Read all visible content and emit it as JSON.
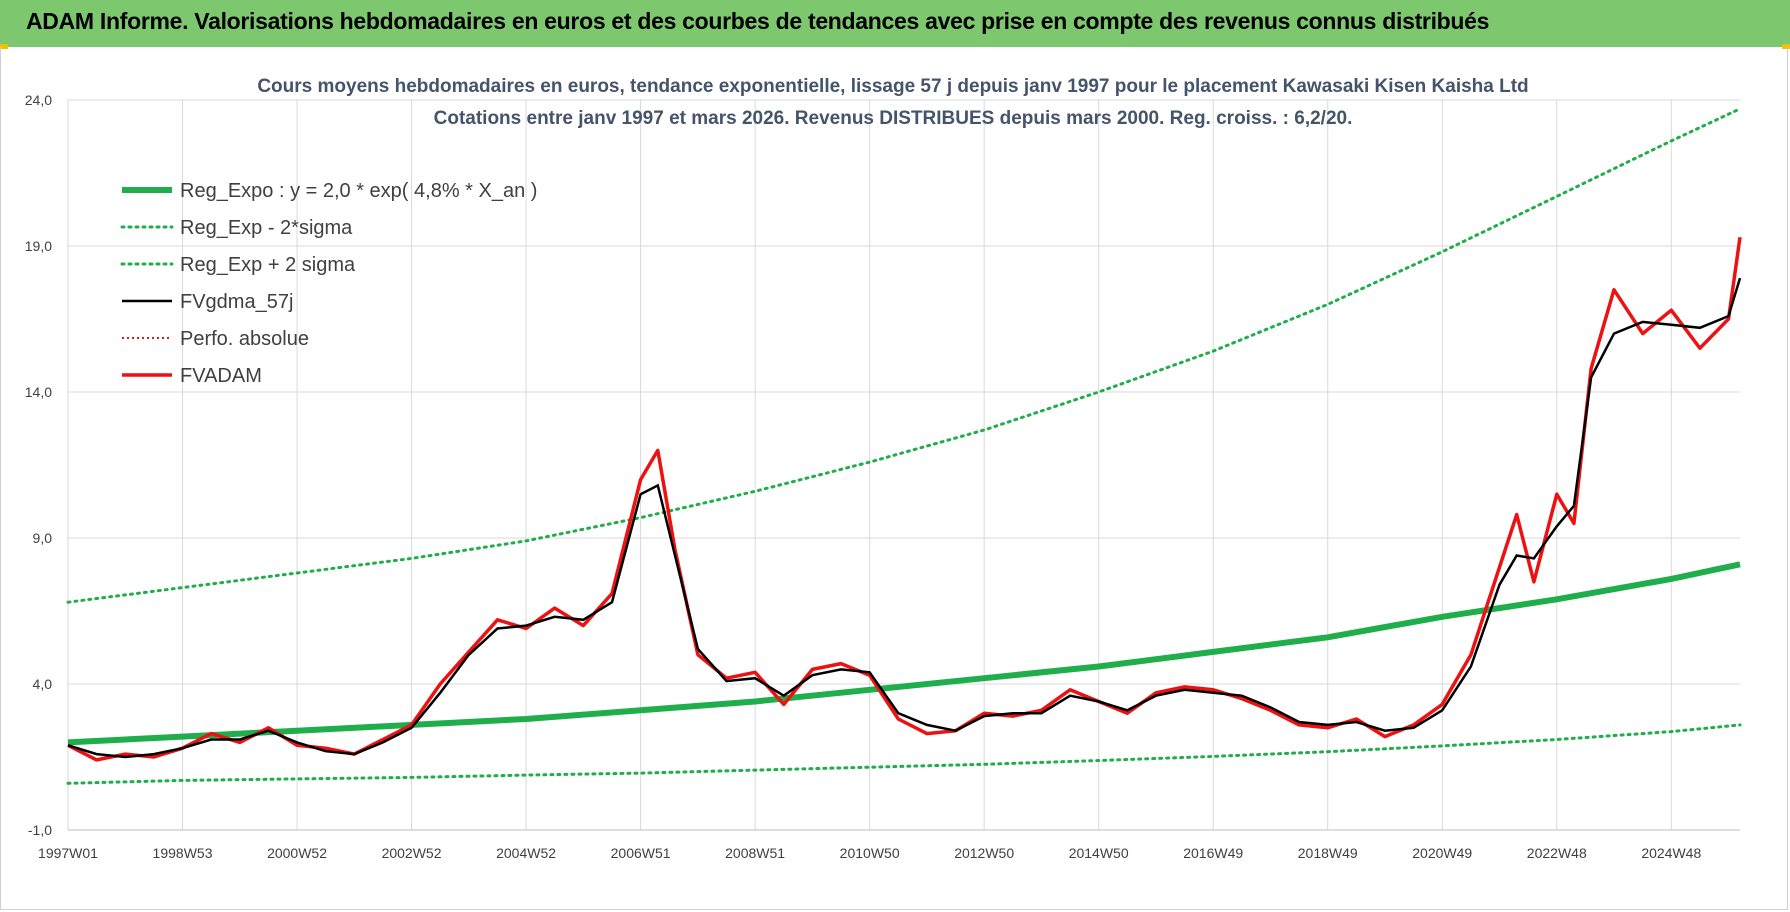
{
  "banner": {
    "title": "ADAM Informe. Valorisations hebdomadaires en euros et des courbes de tendances avec prise en compte des revenus connus distribués"
  },
  "colors": {
    "banner_bg": "#7dc76f",
    "trend": "#1fae4b",
    "smooth": "#000000",
    "fvadam": "#ee1111",
    "perfo": "#cc2222"
  },
  "chart_data": {
    "type": "line",
    "title_line1": "Cours moyens hebdomadaires en euros, tendance exponentielle, lissage 57 j depuis janv 1997  pour le placement Kawasaki Kisen Kaisha Ltd",
    "title_line2": "Cotations entre janv 1997 et mars 2026. Revenus DISTRIBUES depuis mars 2000. Reg. croiss. : 6,2/20.",
    "xlabel": "",
    "ylabel": "",
    "ylim": [
      -1.0,
      24.0
    ],
    "yticks": [
      "24,0",
      "19,0",
      "14,0",
      "9,0",
      "4,0",
      "-1,0"
    ],
    "ytick_values": [
      24,
      19,
      14,
      9,
      4,
      -1
    ],
    "xlim": [
      1997.0,
      2026.2
    ],
    "xticks": [
      "1997W01",
      "1998W53",
      "2000W52",
      "2002W52",
      "2004W52",
      "2006W51",
      "2008W51",
      "2010W50",
      "2012W50",
      "2014W50",
      "2016W49",
      "2018W49",
      "2020W49",
      "2022W48",
      "2024W48"
    ],
    "xtick_values": [
      1997.0,
      1999.0,
      2001.0,
      2003.0,
      2005.0,
      2007.0,
      2009.0,
      2011.0,
      2013.0,
      2015.0,
      2017.0,
      2019.0,
      2021.0,
      2023.0,
      2025.0
    ],
    "grid": true,
    "legend_position": "top-left",
    "legend": [
      {
        "label": "Reg_Expo : y = 2,0 * exp( 4,8% *  X_an )",
        "style": "trend"
      },
      {
        "label": "Reg_Exp - 2*sigma",
        "style": "band"
      },
      {
        "label": "Reg_Exp + 2 sigma",
        "style": "band"
      },
      {
        "label": "FVgdma_57j",
        "style": "smooth"
      },
      {
        "label": "Perfo. absolue",
        "style": "perfo"
      },
      {
        "label": "FVADAM",
        "style": "fvadam"
      }
    ],
    "series": [
      {
        "name": "Reg_Expo : y = 2,0 * exp( 4,8% *  X_an )",
        "x": [
          1997.0,
          1999.0,
          2001.0,
          2003.0,
          2005.0,
          2007.0,
          2009.0,
          2011.0,
          2013.0,
          2015.0,
          2017.0,
          2019.0,
          2021.0,
          2023.0,
          2025.0,
          2026.2
        ],
        "y": [
          2.0,
          2.2,
          2.4,
          2.6,
          2.8,
          3.1,
          3.4,
          3.8,
          4.2,
          4.6,
          5.1,
          5.6,
          6.3,
          6.9,
          7.6,
          8.1
        ]
      },
      {
        "name": "Reg_Exp - 2*sigma",
        "x": [
          1997.0,
          1999.0,
          2001.0,
          2003.0,
          2005.0,
          2007.0,
          2009.0,
          2011.0,
          2013.0,
          2015.0,
          2017.0,
          2019.0,
          2021.0,
          2023.0,
          2025.0,
          2026.2
        ],
        "y": [
          0.6,
          0.7,
          0.75,
          0.8,
          0.88,
          0.95,
          1.05,
          1.15,
          1.25,
          1.38,
          1.52,
          1.68,
          1.88,
          2.1,
          2.37,
          2.6
        ]
      },
      {
        "name": "Reg_Exp + 2 sigma",
        "x": [
          1997.0,
          1999.0,
          2001.0,
          2003.0,
          2005.0,
          2007.0,
          2009.0,
          2011.0,
          2013.0,
          2015.0,
          2017.0,
          2019.0,
          2021.0,
          2023.0,
          2025.0,
          2026.2
        ],
        "y": [
          6.8,
          7.3,
          7.8,
          8.3,
          8.9,
          9.7,
          10.6,
          11.6,
          12.7,
          14.0,
          15.4,
          17.0,
          18.8,
          20.7,
          22.6,
          23.7
        ]
      },
      {
        "name": "FVgdma_57j",
        "x": [
          1997.0,
          1997.5,
          1998.0,
          1998.5,
          1999.0,
          1999.5,
          2000.0,
          2000.5,
          2001.0,
          2001.5,
          2002.0,
          2002.5,
          2003.0,
          2003.5,
          2004.0,
          2004.5,
          2005.0,
          2005.5,
          2006.0,
          2006.5,
          2007.0,
          2007.3,
          2007.6,
          2008.0,
          2008.5,
          2009.0,
          2009.5,
          2010.0,
          2010.5,
          2011.0,
          2011.5,
          2012.0,
          2012.5,
          2013.0,
          2013.5,
          2014.0,
          2014.5,
          2015.0,
          2015.5,
          2016.0,
          2016.5,
          2017.0,
          2017.5,
          2018.0,
          2018.5,
          2019.0,
          2019.5,
          2020.0,
          2020.5,
          2021.0,
          2021.5,
          2022.0,
          2022.3,
          2022.6,
          2023.0,
          2023.3,
          2023.6,
          2024.0,
          2024.5,
          2025.0,
          2025.5,
          2026.0,
          2026.2
        ],
        "y": [
          1.9,
          1.6,
          1.5,
          1.6,
          1.8,
          2.1,
          2.1,
          2.4,
          2.0,
          1.7,
          1.6,
          2.0,
          2.5,
          3.7,
          5.0,
          5.9,
          6.0,
          6.3,
          6.2,
          6.8,
          10.5,
          10.8,
          8.4,
          5.2,
          4.1,
          4.2,
          3.6,
          4.3,
          4.5,
          4.4,
          3.0,
          2.6,
          2.4,
          2.9,
          3.0,
          3.0,
          3.6,
          3.4,
          3.1,
          3.6,
          3.8,
          3.7,
          3.6,
          3.2,
          2.7,
          2.6,
          2.7,
          2.4,
          2.5,
          3.1,
          4.6,
          7.4,
          8.4,
          8.3,
          9.4,
          10.1,
          14.5,
          16.0,
          16.4,
          16.3,
          16.2,
          16.6,
          17.9
        ]
      },
      {
        "name": "FVADAM",
        "x": [
          1997.0,
          1997.5,
          1998.0,
          1998.5,
          1999.0,
          1999.5,
          2000.0,
          2000.5,
          2001.0,
          2001.5,
          2002.0,
          2002.5,
          2003.0,
          2003.5,
          2004.0,
          2004.5,
          2005.0,
          2005.5,
          2006.0,
          2006.5,
          2007.0,
          2007.3,
          2007.6,
          2008.0,
          2008.5,
          2009.0,
          2009.5,
          2010.0,
          2010.5,
          2011.0,
          2011.5,
          2012.0,
          2012.5,
          2013.0,
          2013.5,
          2014.0,
          2014.5,
          2015.0,
          2015.5,
          2016.0,
          2016.5,
          2017.0,
          2017.5,
          2018.0,
          2018.5,
          2019.0,
          2019.5,
          2020.0,
          2020.5,
          2021.0,
          2021.5,
          2022.0,
          2022.3,
          2022.6,
          2023.0,
          2023.3,
          2023.6,
          2024.0,
          2024.5,
          2025.0,
          2025.5,
          2026.0,
          2026.2
        ],
        "y": [
          1.9,
          1.4,
          1.6,
          1.5,
          1.8,
          2.3,
          2.0,
          2.5,
          1.9,
          1.8,
          1.6,
          2.1,
          2.6,
          4.0,
          5.1,
          6.2,
          5.9,
          6.6,
          6.0,
          7.1,
          11.0,
          12.0,
          8.6,
          5.0,
          4.2,
          4.4,
          3.3,
          4.5,
          4.7,
          4.3,
          2.8,
          2.3,
          2.4,
          3.0,
          2.9,
          3.1,
          3.8,
          3.4,
          3.0,
          3.7,
          3.9,
          3.8,
          3.5,
          3.1,
          2.6,
          2.5,
          2.8,
          2.2,
          2.6,
          3.3,
          5.0,
          8.0,
          9.8,
          7.5,
          10.5,
          9.5,
          14.8,
          17.5,
          16.0,
          16.8,
          15.5,
          16.5,
          19.3
        ]
      }
    ]
  }
}
